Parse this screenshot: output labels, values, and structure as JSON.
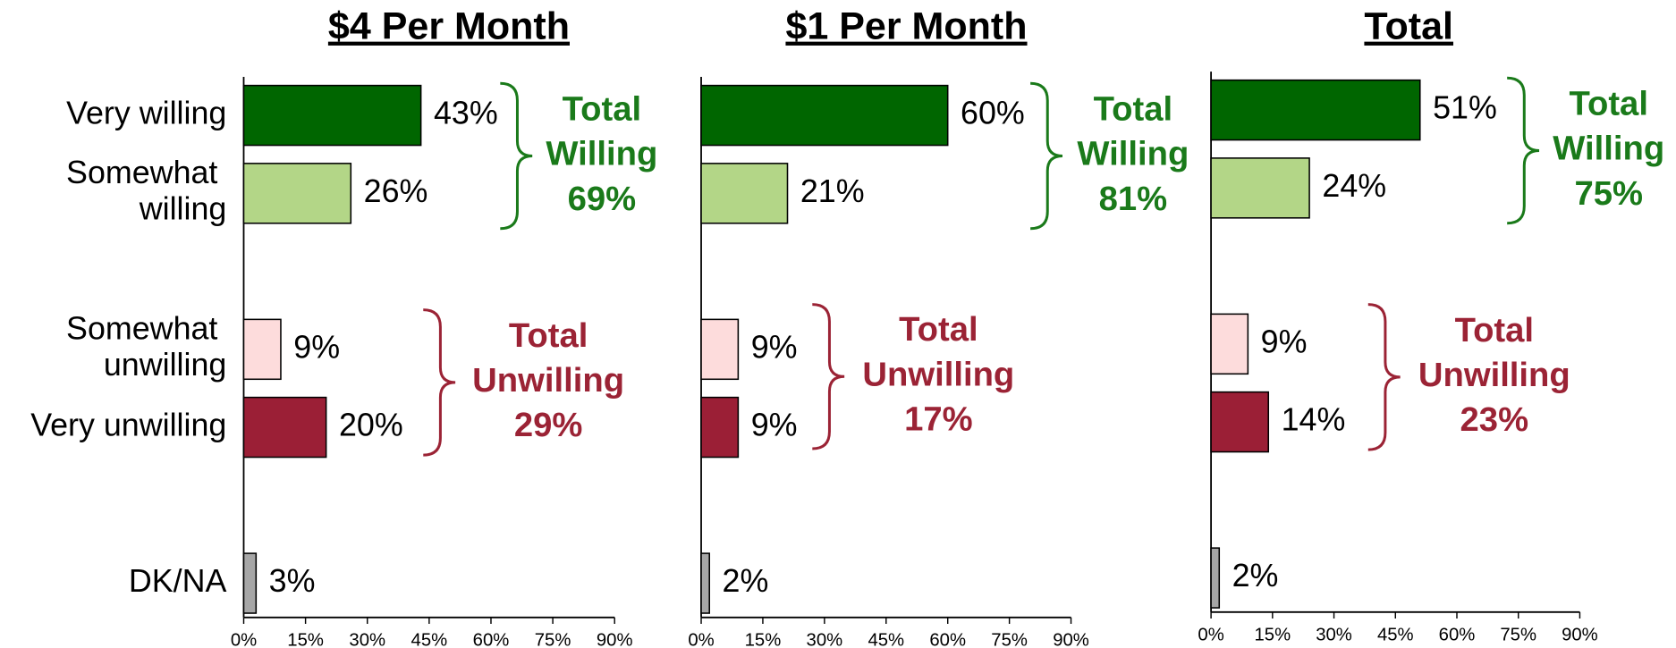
{
  "chart_data": [
    {
      "type": "bar",
      "orientation": "horizontal",
      "title": "$4 Per Month",
      "categories": [
        "Very willing",
        "Somewhat willing",
        "Somewhat unwilling",
        "Very unwilling",
        "DK/NA"
      ],
      "values": [
        43,
        26,
        9,
        20,
        3
      ],
      "value_labels": [
        "43%",
        "26%",
        "9%",
        "20%",
        "3%"
      ],
      "colors": [
        "#006600",
        "#b3d687",
        "#fddcdc",
        "#9b1f36",
        "#a6a6a6"
      ],
      "xlim": [
        0,
        90
      ],
      "xticks": [
        {
          "value": 0,
          "label": "0%"
        },
        {
          "value": 15,
          "label": "15%"
        },
        {
          "value": 30,
          "label": "30%"
        },
        {
          "value": 45,
          "label": "45%"
        },
        {
          "value": 60,
          "label": "60%"
        },
        {
          "value": 75,
          "label": "75%"
        },
        {
          "value": 90,
          "label": "90%"
        }
      ],
      "annotations": [
        {
          "label_lines": [
            "Total",
            "Willing"
          ],
          "value": 69,
          "value_label": "69%",
          "color": "#1a7a1a"
        },
        {
          "label_lines": [
            "Total",
            "Unwilling"
          ],
          "value": 29,
          "value_label": "29%",
          "color": "#9b2335"
        }
      ]
    },
    {
      "type": "bar",
      "orientation": "horizontal",
      "title": "$1 Per Month",
      "categories": [
        null,
        null,
        null,
        null,
        null
      ],
      "values": [
        60,
        21,
        9,
        9,
        2
      ],
      "value_labels": [
        "60%",
        "21%",
        "9%",
        "9%",
        "2%"
      ],
      "colors": [
        "#006600",
        "#b3d687",
        "#fddcdc",
        "#9b1f36",
        "#a6a6a6"
      ],
      "xlim": [
        0,
        90
      ],
      "xticks": [
        {
          "value": 0,
          "label": "0%"
        },
        {
          "value": 15,
          "label": "15%"
        },
        {
          "value": 30,
          "label": "30%"
        },
        {
          "value": 45,
          "label": "45%"
        },
        {
          "value": 60,
          "label": "60%"
        },
        {
          "value": 75,
          "label": "75%"
        },
        {
          "value": 90,
          "label": "90%"
        }
      ],
      "annotations": [
        {
          "label_lines": [
            "Total",
            "Willing"
          ],
          "value": 81,
          "value_label": "81%",
          "color": "#1a7a1a"
        },
        {
          "label_lines": [
            "Total",
            "Unwilling"
          ],
          "value": 17,
          "value_label": "17%",
          "color": "#9b2335"
        }
      ]
    },
    {
      "type": "bar",
      "orientation": "horizontal",
      "title": "Total",
      "categories": [
        null,
        null,
        null,
        null,
        null
      ],
      "values": [
        51,
        24,
        9,
        14,
        2
      ],
      "value_labels": [
        "51%",
        "24%",
        "9%",
        "14%",
        "2%"
      ],
      "colors": [
        "#006600",
        "#b3d687",
        "#fddcdc",
        "#9b1f36",
        "#a6a6a6"
      ],
      "xlim": [
        0,
        90
      ],
      "xticks": [
        {
          "value": 0,
          "label": "0%"
        },
        {
          "value": 15,
          "label": "15%"
        },
        {
          "value": 30,
          "label": "30%"
        },
        {
          "value": 45,
          "label": "45%"
        },
        {
          "value": 60,
          "label": "60%"
        },
        {
          "value": 75,
          "label": "75%"
        },
        {
          "value": 90,
          "label": "90%"
        }
      ],
      "annotations": [
        {
          "label_lines": [
            "Total",
            "Willing"
          ],
          "value": 75,
          "value_label": "75%",
          "color": "#1a7a1a"
        },
        {
          "label_lines": [
            "Total",
            "Unwilling"
          ],
          "value": 23,
          "value_label": "23%",
          "color": "#9b2335"
        }
      ]
    }
  ]
}
